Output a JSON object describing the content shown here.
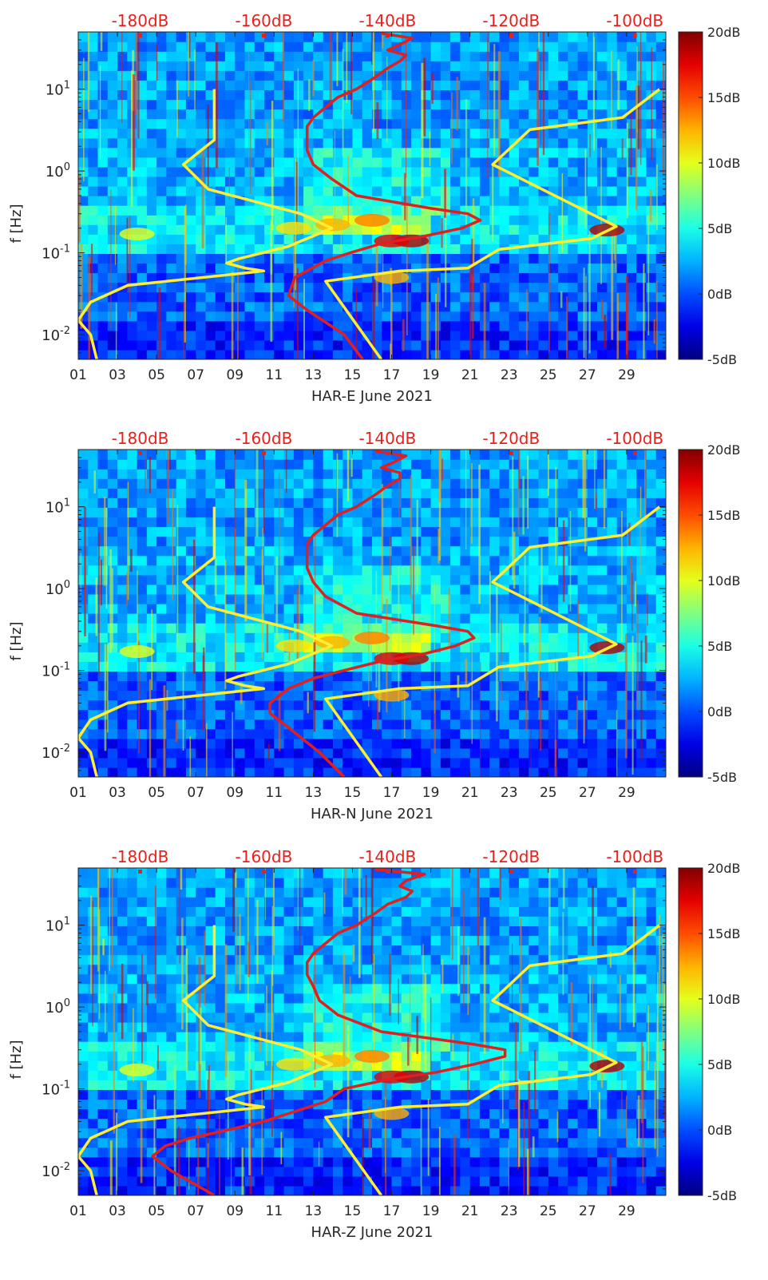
{
  "chart_data": [
    {
      "type": "heatmap",
      "xlabel": "HAR-E June 2021",
      "ylabel": "f [Hz]",
      "x_ticks": [
        "01",
        "03",
        "05",
        "07",
        "09",
        "11",
        "13",
        "15",
        "17",
        "19",
        "21",
        "23",
        "25",
        "27",
        "29"
      ],
      "y_scale": "log",
      "y_ticks": [
        {
          "value": 0.01,
          "base": "10",
          "exp": "-2"
        },
        {
          "value": 0.1,
          "base": "10",
          "exp": "-1"
        },
        {
          "value": 1,
          "base": "10",
          "exp": "0"
        },
        {
          "value": 10,
          "base": "10",
          "exp": "1"
        }
      ],
      "ylim": [
        0.005,
        50
      ],
      "colorbar": {
        "ticks": [
          "-5dB",
          "0dB",
          "5dB",
          "10dB",
          "15dB",
          "20dB"
        ],
        "range": [
          -5,
          20
        ],
        "colormap": "jet"
      },
      "top_axis": {
        "ticks": [
          "-180dB",
          "-160dB",
          "-140dB",
          "-120dB",
          "-100dB"
        ],
        "range": [
          -190,
          -95
        ],
        "color": "#e8201c"
      },
      "noise_models": {
        "color": "#ffee33",
        "low": {
          "f": [
            0.005,
            0.01,
            0.015,
            0.025,
            0.04,
            0.06,
            0.065,
            0.075,
            0.085,
            0.12,
            0.2,
            0.3,
            0.6,
            1.2,
            2.4,
            10
          ],
          "db": [
            -187,
            -188,
            -190,
            -188,
            -182,
            -160,
            -163,
            -166,
            -164,
            -156,
            -149,
            -154,
            -169,
            -173,
            -168,
            -168
          ]
        },
        "high": {
          "f": [
            0.005,
            0.045,
            0.06,
            0.065,
            0.11,
            0.15,
            0.21,
            1.2,
            3.2,
            4.5,
            10
          ],
          "db": [
            -141,
            -150,
            -138,
            -127,
            -122,
            -107,
            -103,
            -123,
            -117,
            -102,
            -96
          ]
        }
      },
      "series": [
        {
          "color": "#e02020",
          "f": [
            0.005,
            0.01,
            0.02,
            0.03,
            0.05,
            0.08,
            0.1,
            0.13,
            0.16,
            0.2,
            0.25,
            0.3,
            0.35,
            0.5,
            0.8,
            1.2,
            1.8,
            2.5,
            3.5,
            4.5,
            6,
            8,
            10,
            14,
            18,
            22,
            26,
            30,
            35,
            42,
            48
          ],
          "db": [
            -144,
            -147,
            -153,
            -156,
            -155,
            -150,
            -146,
            -141,
            -134,
            -128,
            -125,
            -127,
            -133,
            -145,
            -149,
            -152,
            -153,
            -153,
            -153,
            -152,
            -150,
            -148,
            -145,
            -142,
            -140,
            -138,
            -137,
            -140,
            -138,
            -136,
            -141
          ]
        }
      ]
    },
    {
      "type": "heatmap",
      "xlabel": "HAR-N June 2021",
      "ylabel": "f [Hz]",
      "x_ticks": [
        "01",
        "03",
        "05",
        "07",
        "09",
        "11",
        "13",
        "15",
        "17",
        "19",
        "21",
        "23",
        "25",
        "27",
        "29"
      ],
      "y_scale": "log",
      "y_ticks": [
        {
          "value": 0.01,
          "base": "10",
          "exp": "-2"
        },
        {
          "value": 0.1,
          "base": "10",
          "exp": "-1"
        },
        {
          "value": 1,
          "base": "10",
          "exp": "0"
        },
        {
          "value": 10,
          "base": "10",
          "exp": "1"
        }
      ],
      "ylim": [
        0.005,
        50
      ],
      "colorbar": {
        "ticks": [
          "-5dB",
          "0dB",
          "5dB",
          "10dB",
          "15dB",
          "20dB"
        ],
        "range": [
          -5,
          20
        ],
        "colormap": "jet"
      },
      "top_axis": {
        "ticks": [
          "-180dB",
          "-160dB",
          "-140dB",
          "-120dB",
          "-100dB"
        ],
        "range": [
          -190,
          -95
        ],
        "color": "#e8201c"
      },
      "noise_models": {
        "color": "#ffee33",
        "low": {
          "f": [
            0.005,
            0.01,
            0.015,
            0.025,
            0.04,
            0.06,
            0.065,
            0.075,
            0.085,
            0.12,
            0.2,
            0.3,
            0.6,
            1.2,
            2.4,
            10
          ],
          "db": [
            -187,
            -188,
            -190,
            -188,
            -182,
            -160,
            -163,
            -166,
            -164,
            -156,
            -149,
            -154,
            -169,
            -173,
            -168,
            -168
          ]
        },
        "high": {
          "f": [
            0.005,
            0.045,
            0.06,
            0.065,
            0.11,
            0.15,
            0.21,
            1.2,
            3.2,
            4.5,
            10
          ],
          "db": [
            -141,
            -150,
            -138,
            -127,
            -122,
            -107,
            -103,
            -123,
            -117,
            -102,
            -96
          ]
        }
      },
      "series": [
        {
          "color": "#e02020",
          "f": [
            0.005,
            0.01,
            0.02,
            0.03,
            0.04,
            0.06,
            0.08,
            0.1,
            0.13,
            0.16,
            0.2,
            0.25,
            0.3,
            0.35,
            0.5,
            0.8,
            1.2,
            1.8,
            2.5,
            3.5,
            4.5,
            6,
            8,
            10,
            14,
            18,
            22,
            26,
            30,
            35,
            42,
            48
          ],
          "db": [
            -147,
            -151,
            -156,
            -159,
            -159,
            -156,
            -152,
            -147,
            -141,
            -134,
            -129,
            -126,
            -127,
            -132,
            -145,
            -150,
            -152,
            -153,
            -153,
            -153,
            -152,
            -150,
            -148,
            -145,
            -142,
            -140,
            -138,
            -138,
            -141,
            -139,
            -137,
            -142
          ]
        }
      ]
    },
    {
      "type": "heatmap",
      "xlabel": "HAR-Z June 2021",
      "ylabel": "f [Hz]",
      "x_ticks": [
        "01",
        "03",
        "05",
        "07",
        "09",
        "11",
        "13",
        "15",
        "17",
        "19",
        "21",
        "23",
        "25",
        "27",
        "29"
      ],
      "y_scale": "log",
      "y_ticks": [
        {
          "value": 0.01,
          "base": "10",
          "exp": "-2"
        },
        {
          "value": 0.1,
          "base": "10",
          "exp": "-1"
        },
        {
          "value": 1,
          "base": "10",
          "exp": "0"
        },
        {
          "value": 10,
          "base": "10",
          "exp": "1"
        }
      ],
      "ylim": [
        0.005,
        50
      ],
      "colorbar": {
        "ticks": [
          "-5dB",
          "0dB",
          "5dB",
          "10dB",
          "15dB",
          "20dB"
        ],
        "range": [
          -5,
          20
        ],
        "colormap": "jet"
      },
      "top_axis": {
        "ticks": [
          "-180dB",
          "-160dB",
          "-140dB",
          "-120dB",
          "-100dB"
        ],
        "range": [
          -190,
          -95
        ],
        "color": "#e8201c"
      },
      "noise_models": {
        "color": "#ffee33",
        "low": {
          "f": [
            0.005,
            0.01,
            0.015,
            0.025,
            0.04,
            0.06,
            0.065,
            0.075,
            0.085,
            0.12,
            0.2,
            0.3,
            0.6,
            1.2,
            2.4,
            10
          ],
          "db": [
            -187,
            -188,
            -190,
            -188,
            -182,
            -160,
            -163,
            -166,
            -164,
            -156,
            -149,
            -154,
            -169,
            -173,
            -168,
            -168
          ]
        },
        "high": {
          "f": [
            0.005,
            0.045,
            0.06,
            0.065,
            0.11,
            0.15,
            0.21,
            1.2,
            3.2,
            4.5,
            10
          ],
          "db": [
            -141,
            -150,
            -138,
            -127,
            -122,
            -107,
            -103,
            -123,
            -117,
            -102,
            -96
          ]
        }
      },
      "series": [
        {
          "color": "#e02020",
          "f": [
            0.005,
            0.01,
            0.015,
            0.02,
            0.025,
            0.03,
            0.04,
            0.05,
            0.07,
            0.1,
            0.13,
            0.16,
            0.2,
            0.25,
            0.3,
            0.35,
            0.5,
            0.8,
            1.2,
            1.8,
            2.5,
            3.5,
            4.5,
            6,
            8,
            10,
            14,
            18,
            22,
            26,
            30,
            35,
            42,
            48
          ],
          "db": [
            -168,
            -175,
            -178,
            -176,
            -172,
            -167,
            -160,
            -156,
            -150,
            -147,
            -140,
            -132,
            -126,
            -121,
            -121,
            -126,
            -141,
            -148,
            -151,
            -152,
            -153,
            -153,
            -152,
            -150,
            -148,
            -145,
            -142,
            -140,
            -137,
            -136,
            -138,
            -137,
            -134,
            -142
          ]
        }
      ]
    }
  ]
}
